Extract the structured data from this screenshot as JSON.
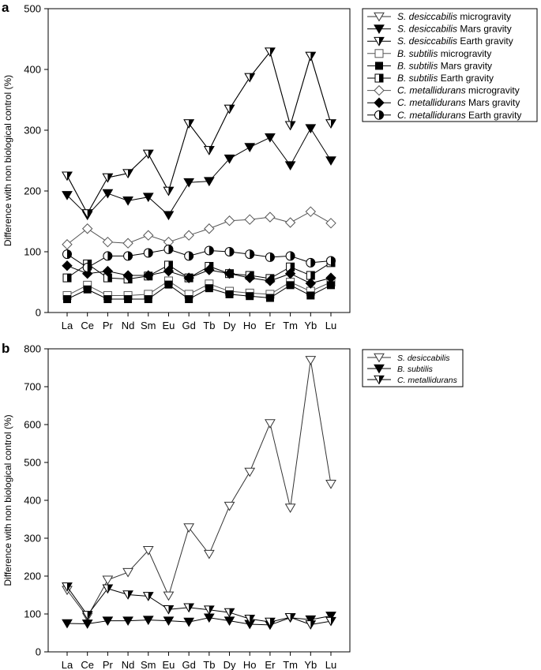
{
  "chart_data": [
    {
      "panel_label": "a",
      "type": "line",
      "categories": [
        "La",
        "Ce",
        "Pr",
        "Nd",
        "Sm",
        "Eu",
        "Gd",
        "Tb",
        "Dy",
        "Ho",
        "Er",
        "Tm",
        "Yb",
        "Lu"
      ],
      "ylabel": "Difference with non biological control (%)",
      "ylim": [
        0,
        500
      ],
      "yticks": [
        0,
        100,
        200,
        300,
        400,
        500
      ],
      "grid": false,
      "legend_position": "top-right",
      "series": [
        {
          "name": "S. desiccabilis microgravity",
          "italic": "S. desiccabilis",
          "rest": " microgravity",
          "marker": "tri-open",
          "color": "#333333",
          "values": [
            225,
            163,
            222,
            229,
            261,
            200,
            311,
            267,
            335,
            387,
            429,
            308,
            422,
            311
          ]
        },
        {
          "name": "S. desiccabilis Mars gravity",
          "italic": "S. desiccabilis",
          "rest": " Mars gravity",
          "marker": "tri-filled",
          "color": "#000000",
          "values": [
            193,
            160,
            196,
            184,
            190,
            160,
            214,
            216,
            253,
            272,
            288,
            242,
            303,
            250
          ]
        },
        {
          "name": "S. desiccabilis Earth gravity",
          "italic": "S. desiccabilis",
          "rest": " Earth gravity",
          "marker": "tri-half",
          "color": "#000000",
          "values": [
            225,
            163,
            222,
            229,
            261,
            200,
            311,
            267,
            335,
            387,
            429,
            308,
            422,
            311
          ]
        },
        {
          "name": "B. subtilis microgravity",
          "italic": "B. subtilis",
          "rest": " microgravity",
          "marker": "sq-open",
          "color": "#555555",
          "values": [
            28,
            45,
            28,
            28,
            30,
            52,
            30,
            47,
            35,
            32,
            30,
            50,
            35,
            50
          ]
        },
        {
          "name": "B. subtilis Mars gravity",
          "italic": "B. subtilis",
          "rest": " Mars gravity",
          "marker": "sq-filled",
          "color": "#000000",
          "values": [
            22,
            38,
            22,
            22,
            22,
            46,
            22,
            40,
            30,
            27,
            24,
            45,
            28,
            45
          ]
        },
        {
          "name": "B. subtilis Earth gravity",
          "italic": "B. subtilis",
          "rest": " Earth gravity",
          "marker": "sq-half",
          "color": "#000000",
          "values": [
            57,
            80,
            57,
            55,
            60,
            78,
            57,
            76,
            64,
            61,
            56,
            75,
            61,
            82
          ]
        },
        {
          "name": "C. metallidurans microgravity",
          "italic": "C. metallidurans",
          "rest": " microgravity",
          "marker": "dia-open",
          "color": "#555555",
          "values": [
            112,
            138,
            116,
            114,
            127,
            116,
            127,
            138,
            151,
            153,
            157,
            148,
            166,
            147
          ]
        },
        {
          "name": "C. metallidurans Mars gravity",
          "italic": "C. metallidurans",
          "rest": " Mars gravity",
          "marker": "dia-filled",
          "color": "#000000",
          "values": [
            77,
            64,
            68,
            61,
            61,
            68,
            57,
            70,
            64,
            57,
            52,
            64,
            48,
            57
          ]
        },
        {
          "name": "C. metallidurans Earth gravity",
          "italic": "C. metallidurans",
          "rest": " Earth gravity",
          "marker": "half-circle",
          "color": "#000000",
          "values": [
            96,
            74,
            93,
            93,
            98,
            104,
            93,
            102,
            100,
            96,
            91,
            93,
            82,
            85
          ]
        }
      ]
    },
    {
      "panel_label": "b",
      "type": "line",
      "categories": [
        "La",
        "Ce",
        "Pr",
        "Nd",
        "Sm",
        "Eu",
        "Gd",
        "Tb",
        "Dy",
        "Ho",
        "Er",
        "Tm",
        "Yb",
        "Lu"
      ],
      "ylabel": "Difference with non biological control (%)",
      "ylim": [
        0,
        800
      ],
      "yticks": [
        0,
        100,
        200,
        300,
        400,
        500,
        600,
        700,
        800
      ],
      "grid": false,
      "legend_position": "top-right",
      "series": [
        {
          "name": "S. desiccabilis",
          "italic": "S. desiccabilis",
          "rest": "",
          "marker": "tri-open",
          "color": "#333333",
          "values": [
            163,
            92,
            190,
            210,
            268,
            148,
            328,
            258,
            385,
            475,
            603,
            380,
            770,
            443
          ]
        },
        {
          "name": "B. subtilis",
          "italic": "B. subtilis",
          "rest": "",
          "marker": "tri-filled",
          "color": "#000000",
          "values": [
            75,
            74,
            82,
            82,
            84,
            82,
            79,
            90,
            82,
            73,
            71,
            90,
            85,
            95
          ]
        },
        {
          "name": "C. metallidurans",
          "italic": "C. metallidurans",
          "rest": "",
          "marker": "tri-half",
          "color": "#000000",
          "values": [
            172,
            97,
            167,
            151,
            147,
            112,
            117,
            111,
            104,
            87,
            79,
            91,
            72,
            81
          ]
        }
      ]
    }
  ]
}
